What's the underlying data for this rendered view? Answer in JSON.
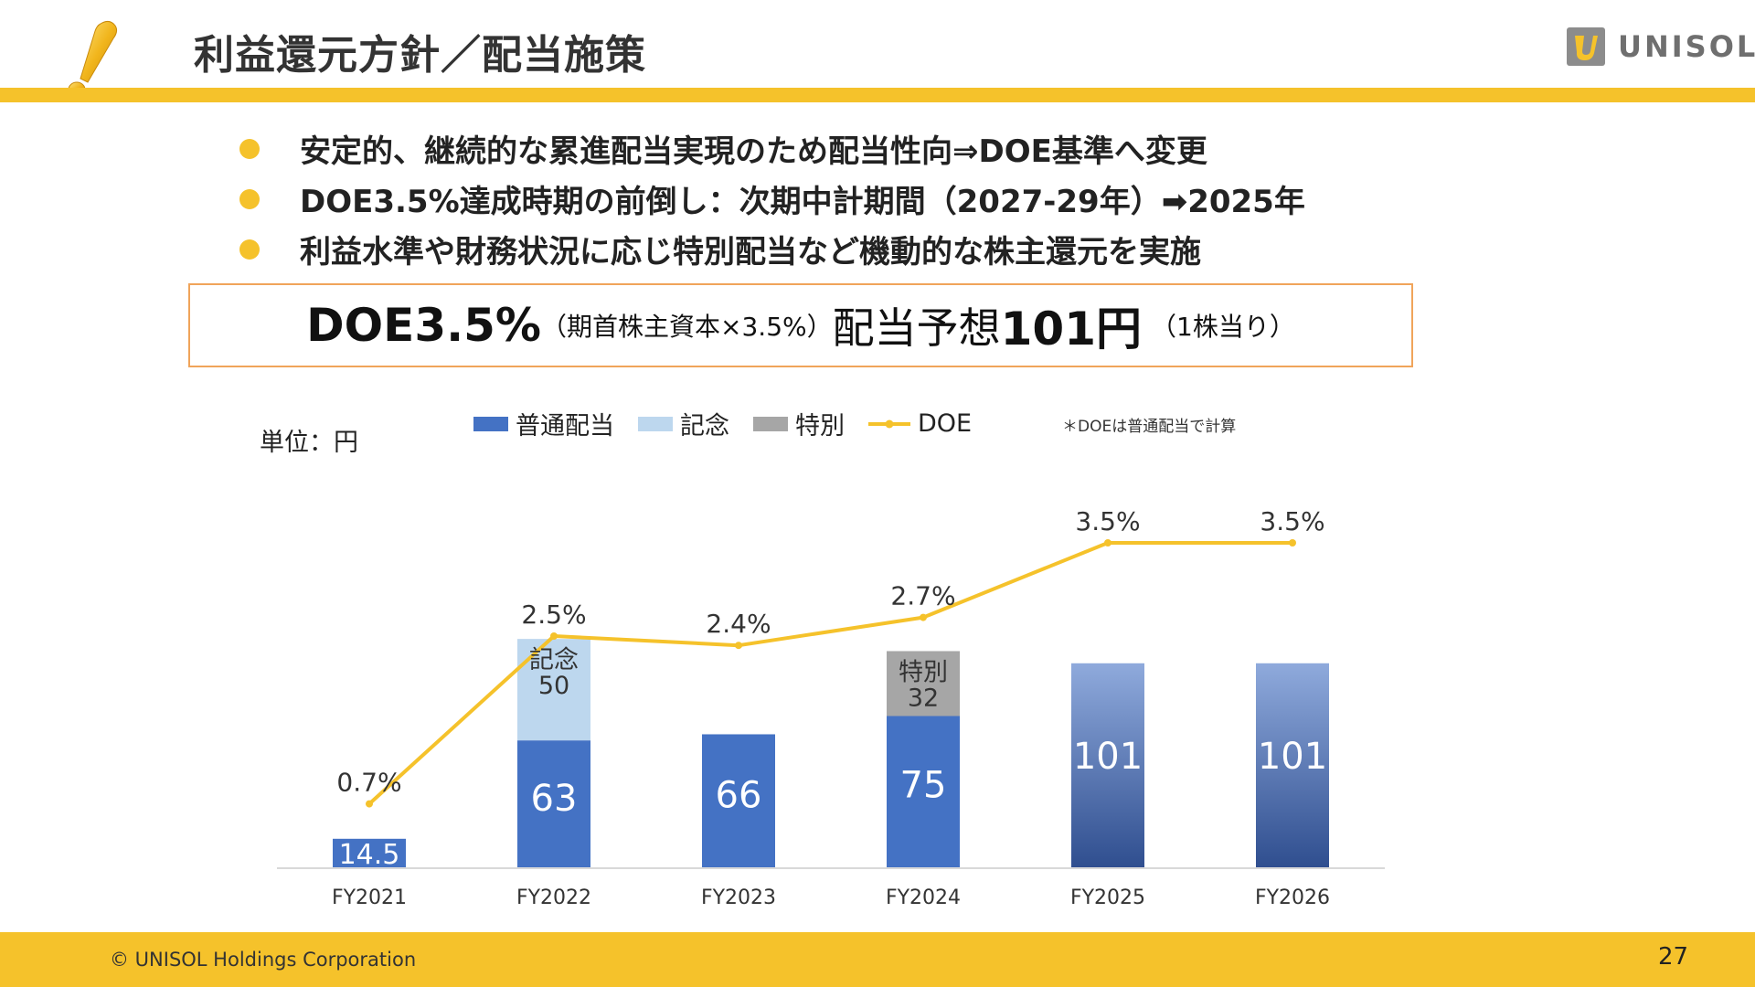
{
  "header": {
    "title": "利益還元方針／配当施策",
    "logo_text": "UNISOL"
  },
  "bullets": [
    "安定的、継続的な累進配当実現のため配当性向⇒DOE基準へ変更",
    "DOE3.5%達成時期の前倒し：次期中計期間（2027-29年）➡2025年",
    "利益水準や財務状況に応じ特別配当など機動的な株主還元を実施"
  ],
  "summary": {
    "doe": "DOE3.5%",
    "doe_note": "（期首株主資本×3.5%）",
    "forecast_label": "配当予想",
    "forecast_value": "101円",
    "forecast_note": "（1株当り）"
  },
  "unit_label": "単位：円",
  "note": "＊DOEは普通配当で計算",
  "colors": {
    "accent": "#f5c22b",
    "regular": "#4472c4",
    "commemorative": "#bdd7ee",
    "special": "#a6a6a6",
    "doe": "#f5c22b"
  },
  "chart_data": {
    "type": "bar",
    "categories": [
      "FY2021",
      "FY2022",
      "FY2023",
      "FY2024",
      "FY2025",
      "FY2026"
    ],
    "series": [
      {
        "name": "普通配当",
        "values": [
          14.5,
          63,
          66,
          75,
          101,
          101
        ],
        "labels": [
          "14.5",
          "63",
          "66",
          "75",
          "101",
          "101"
        ]
      },
      {
        "name": "記念",
        "values": [
          0,
          50,
          0,
          0,
          0,
          0
        ],
        "labels": [
          "",
          "記念\n50",
          "",
          "",
          "",
          ""
        ]
      },
      {
        "name": "特別",
        "values": [
          0,
          0,
          0,
          32,
          0,
          0
        ],
        "labels": [
          "",
          "",
          "",
          "特別\n32",
          "",
          ""
        ]
      },
      {
        "name": "DOE",
        "type": "line",
        "values": [
          0.7,
          2.5,
          2.4,
          2.7,
          3.5,
          3.5
        ],
        "labels": [
          "0.7%",
          "2.5%",
          "2.4%",
          "2.7%",
          "3.5%",
          "3.5%"
        ]
      }
    ],
    "forecast_categories": [
      "FY2025",
      "FY2026"
    ],
    "legend_position": "top",
    "grid": false
  },
  "footer": {
    "copyright": "© UNISOL Holdings Corporation",
    "page_number": "27"
  }
}
